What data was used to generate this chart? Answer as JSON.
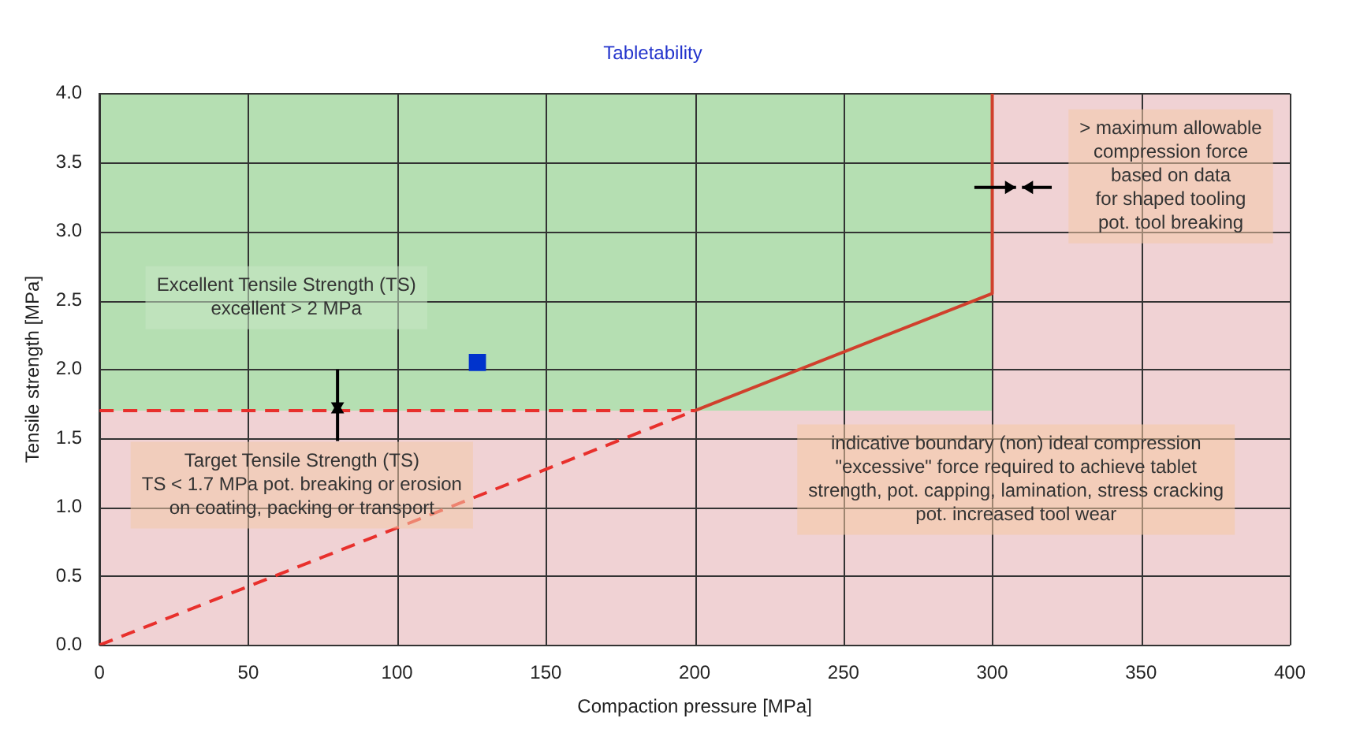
{
  "chart_data": {
    "type": "scatter",
    "title": "Tabletability",
    "xlabel": "Compaction pressure [MPa]",
    "ylabel": "Tensile strength [MPa]",
    "xlim": [
      0,
      400
    ],
    "xticks": [
      0,
      50,
      100,
      150,
      200,
      250,
      300,
      350,
      400
    ],
    "ylim": [
      0,
      4
    ],
    "yticks": [
      {
        "value": 0,
        "label": "0.0"
      },
      {
        "value": 0.5,
        "label": "0.5"
      },
      {
        "value": 1,
        "label": "1.0"
      },
      {
        "value": 1.5,
        "label": "1.5"
      },
      {
        "value": 2,
        "label": "2.0"
      },
      {
        "value": 2.5,
        "label": "2.5"
      },
      {
        "value": 3,
        "label": "3.0"
      },
      {
        "value": 3.5,
        "label": "3.5"
      },
      {
        "value": 4,
        "label": "4.0"
      }
    ],
    "grid": true,
    "legend": false,
    "bands": [
      {
        "axis": "y",
        "from": 1.7,
        "to": 4,
        "color": "#b5dfb2"
      },
      {
        "axis": "y",
        "from": 0,
        "to": 1.7,
        "color": "#f0d2d4"
      },
      {
        "axis": "x",
        "from": 300,
        "to": 400,
        "color": "#f0d2d4"
      }
    ],
    "series": [
      {
        "color": "#0033cc",
        "marker": "square",
        "x": [
          127
        ],
        "values": [
          2.05
        ]
      },
      {
        "type": "line",
        "color": "#e8302c",
        "line_style": "dashed",
        "marker": "none",
        "x": [
          0,
          200
        ],
        "values": [
          0,
          1.7
        ]
      },
      {
        "type": "line",
        "color": "#e8302c",
        "line_style": "dashed",
        "marker": "none",
        "x": [
          0,
          200
        ],
        "values": [
          1.7,
          1.7
        ]
      },
      {
        "type": "line",
        "color": "#d0402c",
        "line_style": "solid",
        "marker": "none",
        "x": [
          200,
          300,
          300
        ],
        "values": [
          1.7,
          2.55,
          4
        ]
      }
    ],
    "annotations": [
      "Excellent Tensile Strength (TS)\nexcellent > 2 MPa",
      "Target Tensile Strength (TS)\nTS < 1.7 MPa pot. breaking or erosion\non coating, packing or transport",
      "indicative boundary (non) ideal compression\n\"excessive\" force required to achieve tablet\nstrength, pot. capping, lamination, stress cracking\npot. increased tool wear",
      "> maximum allowable\ncompression force\nbased on data\nfor shaped tooling\npot. tool breaking"
    ]
  }
}
